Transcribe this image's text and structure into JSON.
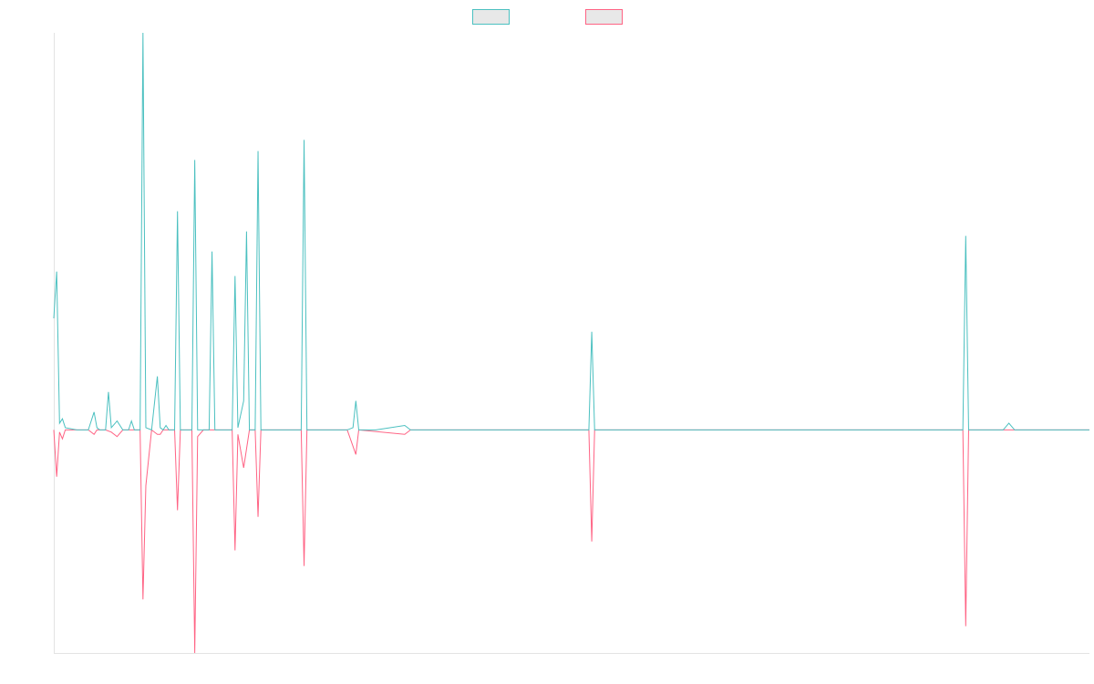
{
  "chart_data": {
    "type": "line",
    "title": "",
    "xlabel": "",
    "ylabel": "",
    "grid": false,
    "legend_position": "top-center",
    "x_range": [
      0,
      180
    ],
    "ylim": [
      -100,
      178
    ],
    "series": [
      {
        "color": "#4bc0c0",
        "legend_fill": "#e8e8e8",
        "points": [
          [
            0,
            50
          ],
          [
            0.5,
            71
          ],
          [
            1,
            3
          ],
          [
            1.5,
            5
          ],
          [
            2,
            1
          ],
          [
            4,
            0
          ],
          [
            6,
            0
          ],
          [
            7,
            8
          ],
          [
            7.5,
            1
          ],
          [
            8,
            0
          ],
          [
            9,
            0
          ],
          [
            9.5,
            17
          ],
          [
            10,
            1
          ],
          [
            11,
            4
          ],
          [
            12,
            0
          ],
          [
            13,
            0
          ],
          [
            13.5,
            4
          ],
          [
            14,
            0
          ],
          [
            15,
            0
          ],
          [
            15.5,
            178
          ],
          [
            16,
            1
          ],
          [
            17,
            0
          ],
          [
            18,
            24
          ],
          [
            18.5,
            1
          ],
          [
            19,
            0
          ],
          [
            19.5,
            2
          ],
          [
            20,
            0
          ],
          [
            21,
            0
          ],
          [
            21.5,
            98
          ],
          [
            22,
            0
          ],
          [
            24,
            0
          ],
          [
            24.5,
            121
          ],
          [
            25,
            0
          ],
          [
            26,
            0
          ],
          [
            27,
            0
          ],
          [
            27.5,
            80
          ],
          [
            28,
            0
          ],
          [
            31,
            0
          ],
          [
            31.5,
            69
          ],
          [
            32,
            1
          ],
          [
            33,
            13
          ],
          [
            33.5,
            89
          ],
          [
            34,
            0
          ],
          [
            35,
            0
          ],
          [
            35.5,
            125
          ],
          [
            36,
            0
          ],
          [
            43,
            0
          ],
          [
            43.5,
            130
          ],
          [
            44,
            0
          ],
          [
            51,
            0
          ],
          [
            52,
            1
          ],
          [
            52.5,
            13
          ],
          [
            53,
            0
          ],
          [
            56,
            0
          ],
          [
            61,
            2
          ],
          [
            62,
            0
          ],
          [
            75,
            0
          ],
          [
            85,
            0
          ],
          [
            93,
            0
          ],
          [
            93.5,
            44
          ],
          [
            94,
            0
          ],
          [
            115,
            0
          ],
          [
            137,
            0
          ],
          [
            138,
            0
          ],
          [
            139,
            0
          ],
          [
            140,
            0
          ],
          [
            147,
            0
          ],
          [
            157,
            0
          ],
          [
            158,
            0
          ],
          [
            158.5,
            87
          ],
          [
            159,
            0
          ],
          [
            165,
            0
          ],
          [
            166,
            3
          ],
          [
            167,
            0
          ],
          [
            180,
            0
          ]
        ]
      },
      {
        "color": "#ff6384",
        "legend_fill": "#e8e8e8",
        "points": [
          [
            0,
            0
          ],
          [
            0.5,
            -21
          ],
          [
            1,
            -1
          ],
          [
            1.5,
            -4
          ],
          [
            2,
            0
          ],
          [
            4,
            0
          ],
          [
            6,
            0
          ],
          [
            7,
            -2
          ],
          [
            7.5,
            0
          ],
          [
            8,
            0
          ],
          [
            9,
            0
          ],
          [
            10,
            -1
          ],
          [
            11,
            -3
          ],
          [
            12,
            0
          ],
          [
            13,
            0
          ],
          [
            15,
            0
          ],
          [
            15.5,
            -76
          ],
          [
            16,
            -25
          ],
          [
            17,
            0
          ],
          [
            18,
            -2
          ],
          [
            18.5,
            -2
          ],
          [
            19,
            0
          ],
          [
            20,
            0
          ],
          [
            21,
            0
          ],
          [
            21.5,
            -36
          ],
          [
            22,
            0
          ],
          [
            24,
            0
          ],
          [
            24.5,
            -100
          ],
          [
            25,
            -3
          ],
          [
            26,
            0
          ],
          [
            27,
            0
          ],
          [
            28,
            0
          ],
          [
            31,
            0
          ],
          [
            31.5,
            -54
          ],
          [
            32,
            -2
          ],
          [
            33,
            -17
          ],
          [
            34,
            0
          ],
          [
            35,
            0
          ],
          [
            35.5,
            -39
          ],
          [
            36,
            0
          ],
          [
            43,
            0
          ],
          [
            43.5,
            -61
          ],
          [
            44,
            0
          ],
          [
            51,
            0
          ],
          [
            52.5,
            -11
          ],
          [
            53,
            0
          ],
          [
            61,
            -2
          ],
          [
            62,
            0
          ],
          [
            75,
            0
          ],
          [
            85,
            0
          ],
          [
            93,
            0
          ],
          [
            93.5,
            -50
          ],
          [
            94,
            0
          ],
          [
            115,
            0
          ],
          [
            137,
            0
          ],
          [
            138,
            0
          ],
          [
            139,
            0
          ],
          [
            140,
            0
          ],
          [
            147,
            0
          ],
          [
            157,
            0
          ],
          [
            158,
            0
          ],
          [
            158.5,
            -88
          ],
          [
            159,
            0
          ],
          [
            165,
            0
          ],
          [
            167,
            0
          ],
          [
            180,
            0
          ]
        ]
      }
    ]
  }
}
